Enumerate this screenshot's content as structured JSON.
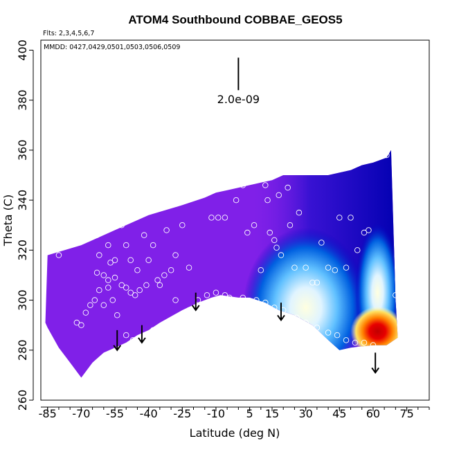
{
  "chart_data": {
    "type": "heatmap",
    "title": "ATOM4 Southbound COBBAE_GEOS5",
    "annotations": {
      "flights": "Flts: 2,3,4,5,6,7",
      "dates": "MMDD: 0427,0429,0501,0503,0506,0509",
      "scale_label": "2.0e-09"
    },
    "xlabel": "Latitude (deg N)",
    "ylabel": "Theta (C)",
    "xlim": [
      -88,
      85
    ],
    "ylim": [
      260,
      404
    ],
    "xticks": [
      -85,
      -70,
      -55,
      -40,
      -25,
      -10,
      5,
      15,
      30,
      45,
      60,
      75
    ],
    "yticks": [
      260,
      280,
      300,
      320,
      340,
      360,
      380,
      400
    ],
    "grid": false,
    "colors": {
      "background_field": "#8020E8",
      "point": "#ffffff",
      "arrow": "#000000",
      "colormap": [
        "#8020E8",
        "#4010D8",
        "#0000C0",
        "#0050E0",
        "#00A0FF",
        "#80D0FF",
        "#E0F4FF",
        "#FFFFD0",
        "#FFE060",
        "#FF8000",
        "#E00000",
        "#C00000"
      ]
    },
    "field_outline": {
      "top": [
        [
          -86,
          291
        ],
        [
          -85,
          318
        ],
        [
          -70,
          322
        ],
        [
          -55,
          328
        ],
        [
          -40,
          334
        ],
        [
          -25,
          338
        ],
        [
          -15,
          341
        ],
        [
          -10,
          343
        ],
        [
          -5,
          344
        ],
        [
          0,
          345
        ],
        [
          5,
          346
        ],
        [
          10,
          347
        ],
        [
          15,
          348
        ],
        [
          20,
          350
        ],
        [
          30,
          350
        ],
        [
          40,
          350
        ],
        [
          50,
          352
        ],
        [
          55,
          354
        ],
        [
          60,
          355
        ],
        [
          66,
          357
        ],
        [
          68,
          360
        ],
        [
          70,
          300
        ],
        [
          71,
          285
        ]
      ],
      "bottom": [
        [
          71,
          285
        ],
        [
          66,
          282
        ],
        [
          60,
          282
        ],
        [
          50,
          281
        ],
        [
          45,
          280
        ],
        [
          40,
          284
        ],
        [
          33,
          290
        ],
        [
          25,
          294
        ],
        [
          18,
          296
        ],
        [
          12,
          299
        ],
        [
          5,
          301
        ],
        [
          0,
          301
        ],
        [
          -8,
          302
        ],
        [
          -12,
          301
        ],
        [
          -18,
          299
        ],
        [
          -25,
          296
        ],
        [
          -35,
          291
        ],
        [
          -40,
          288
        ],
        [
          -45,
          286
        ],
        [
          -50,
          283
        ],
        [
          -55,
          281
        ],
        [
          -60,
          279
        ],
        [
          -65,
          275
        ],
        [
          -70,
          269
        ],
        [
          -75,
          275
        ],
        [
          -80,
          281
        ],
        [
          -85,
          289
        ],
        [
          -86,
          291
        ]
      ]
    },
    "hotspots": [
      {
        "name": "red-core",
        "lat": 62,
        "theta": 287.5,
        "value": 1.0
      },
      {
        "name": "blue-plume",
        "lat": 28,
        "theta": 300,
        "value": 0.35
      }
    ],
    "points": [
      [
        -65,
        330
      ],
      [
        -63,
        326
      ],
      [
        -62,
        318
      ],
      [
        -60,
        330
      ],
      [
        -58,
        322
      ],
      [
        -57,
        315
      ],
      [
        -55,
        316
      ],
      [
        -52,
        330
      ],
      [
        -50,
        322
      ],
      [
        -48,
        316
      ],
      [
        -45,
        312
      ],
      [
        -44,
        337
      ],
      [
        -42,
        326
      ],
      [
        -40,
        316
      ],
      [
        -38,
        322
      ],
      [
        -35,
        306
      ],
      [
        -32,
        328
      ],
      [
        -30,
        312
      ],
      [
        -28,
        318
      ],
      [
        -25,
        330
      ],
      [
        -22,
        313
      ],
      [
        -18,
        350
      ],
      [
        -12,
        333
      ],
      [
        -9,
        333
      ],
      [
        -6,
        333
      ],
      [
        -3,
        346
      ],
      [
        -1,
        340
      ],
      [
        2,
        346
      ],
      [
        4,
        327
      ],
      [
        7,
        330
      ],
      [
        10,
        312
      ],
      [
        12,
        346
      ],
      [
        13,
        340
      ],
      [
        14,
        327
      ],
      [
        16,
        324
      ],
      [
        17,
        321
      ],
      [
        18,
        342
      ],
      [
        19,
        318
      ],
      [
        22,
        345
      ],
      [
        23,
        330
      ],
      [
        25,
        313
      ],
      [
        27,
        335
      ],
      [
        30,
        313
      ],
      [
        33,
        307
      ],
      [
        35,
        307
      ],
      [
        37,
        323
      ],
      [
        40,
        313
      ],
      [
        43,
        312
      ],
      [
        45,
        333
      ],
      [
        48,
        313
      ],
      [
        50,
        333
      ],
      [
        53,
        320
      ],
      [
        56,
        327
      ],
      [
        58,
        328
      ],
      [
        66,
        358
      ],
      [
        70,
        302
      ],
      [
        -80,
        318
      ],
      [
        -72,
        291
      ],
      [
        -70,
        290
      ],
      [
        -68,
        295
      ],
      [
        -66,
        298
      ],
      [
        -64,
        300
      ],
      [
        -62,
        304
      ],
      [
        -60,
        298
      ],
      [
        -58,
        305
      ],
      [
        -56,
        300
      ],
      [
        -54,
        294
      ],
      [
        -50,
        286
      ],
      [
        -47,
        284
      ],
      [
        -45,
        283
      ],
      [
        -42,
        284
      ],
      [
        -38,
        288
      ],
      [
        -34,
        287
      ],
      [
        -30,
        289
      ],
      [
        -26,
        294
      ],
      [
        -22,
        296
      ],
      [
        -18,
        300
      ],
      [
        -14,
        302
      ],
      [
        -10,
        303
      ],
      [
        -6,
        302
      ],
      [
        -4,
        301
      ],
      [
        2,
        301
      ],
      [
        8,
        300
      ],
      [
        12,
        299
      ],
      [
        16,
        297
      ],
      [
        20,
        296
      ],
      [
        26,
        293
      ],
      [
        30,
        291
      ],
      [
        35,
        289
      ],
      [
        40,
        287
      ],
      [
        44,
        286
      ],
      [
        48,
        284
      ],
      [
        52,
        283
      ],
      [
        56,
        283
      ],
      [
        60,
        282
      ],
      [
        -63,
        311
      ],
      [
        -60,
        310
      ],
      [
        -58,
        308
      ],
      [
        -55,
        309
      ],
      [
        -52,
        306
      ],
      [
        -50,
        305
      ],
      [
        -48,
        303
      ],
      [
        -46,
        302
      ],
      [
        -44,
        304
      ],
      [
        -41,
        306
      ],
      [
        -36,
        308
      ],
      [
        -33,
        310
      ],
      [
        -28,
        300
      ]
    ],
    "arrows": [
      {
        "lat": -54,
        "theta_from": 288,
        "theta_to": 280
      },
      {
        "lat": -43,
        "theta_from": 290,
        "theta_to": 283
      },
      {
        "lat": -19,
        "theta_from": 303,
        "theta_to": 296
      },
      {
        "lat": 19,
        "theta_from": 299,
        "theta_to": 292
      },
      {
        "lat": 61,
        "theta_from": 279,
        "theta_to": 271
      }
    ],
    "scale_bar": {
      "lat": 0,
      "theta_from": 397,
      "theta_to": 384
    }
  }
}
